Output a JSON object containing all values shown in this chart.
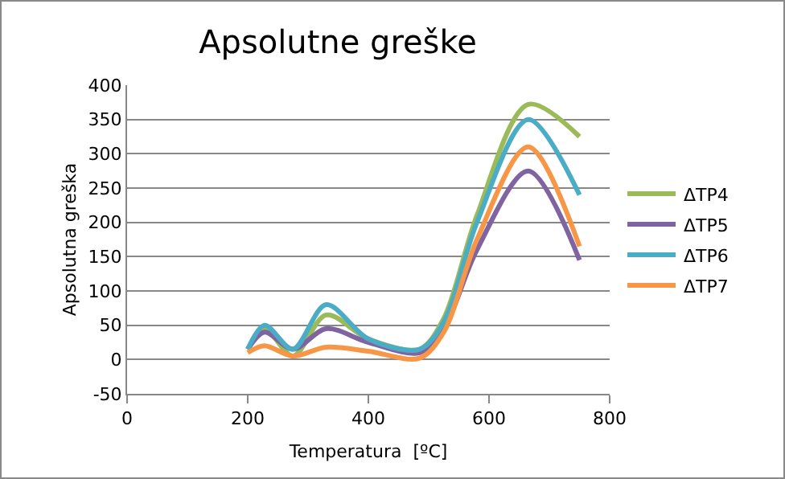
{
  "chart_data": {
    "type": "line",
    "title": "Apsolutne greške",
    "xlabel": "Temperatura  [ºC]",
    "ylabel": "Apsolutna greška",
    "x": [
      200,
      228,
      275,
      330,
      400,
      485,
      525,
      580,
      665,
      750
    ],
    "series": [
      {
        "name": "ΔTP4",
        "color": "#9bbb59",
        "values": [
          15,
          45,
          5,
          65,
          30,
          15,
          60,
          210,
          372,
          325
        ]
      },
      {
        "name": "ΔTP5",
        "color": "#8064a2",
        "values": [
          15,
          40,
          15,
          45,
          25,
          10,
          45,
          160,
          275,
          145
        ]
      },
      {
        "name": "ΔTP6",
        "color": "#4bacc6",
        "values": [
          15,
          50,
          15,
          80,
          30,
          15,
          55,
          200,
          350,
          240
        ]
      },
      {
        "name": "ΔTP7",
        "color": "#f79646",
        "values": [
          10,
          20,
          5,
          18,
          12,
          2,
          40,
          175,
          310,
          165
        ]
      }
    ],
    "xlim": [
      0,
      800
    ],
    "xticks": [
      0,
      200,
      400,
      600,
      800
    ],
    "ylim": [
      -50,
      400
    ],
    "yticks": [
      -50,
      0,
      50,
      100,
      150,
      200,
      250,
      300,
      350,
      400
    ],
    "grid": "y",
    "legend": "right",
    "marker": "none",
    "line_style": "solid"
  }
}
